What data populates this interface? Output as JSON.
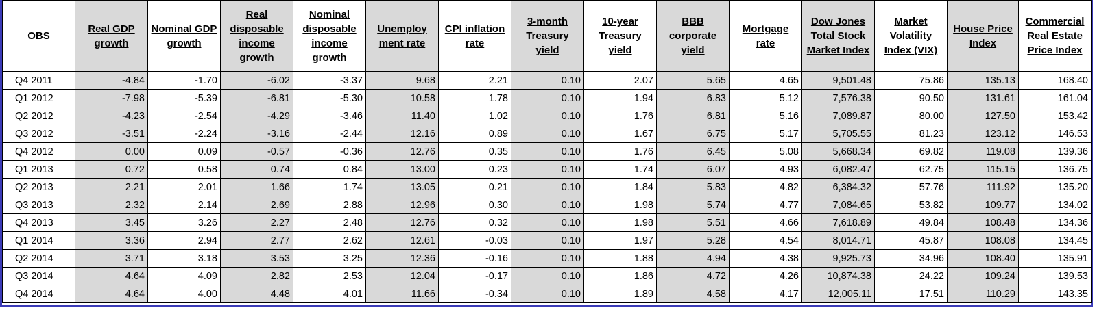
{
  "table": {
    "headers": [
      "OBS",
      "Real GDP growth",
      "Nominal GDP growth",
      "Real disposable income growth",
      "Nominal disposable income growth",
      "Unemploy ment rate",
      "CPI inflation rate",
      "3-month Treasury yield",
      "10-year Treasury yield",
      "BBB corporate yield",
      "Mortgage rate",
      "Dow Jones Total Stock Market Index",
      "Market Volatility Index (VIX)",
      "House Price Index",
      "Commercial Real Estate Price Index"
    ],
    "rows": [
      [
        "Q4 2011",
        "-4.84",
        "-1.70",
        "-6.02",
        "-3.37",
        "9.68",
        "2.21",
        "0.10",
        "2.07",
        "5.65",
        "4.65",
        "9,501.48",
        "75.86",
        "135.13",
        "168.40"
      ],
      [
        "Q1 2012",
        "-7.98",
        "-5.39",
        "-6.81",
        "-5.30",
        "10.58",
        "1.78",
        "0.10",
        "1.94",
        "6.83",
        "5.12",
        "7,576.38",
        "90.50",
        "131.61",
        "161.04"
      ],
      [
        "Q2 2012",
        "-4.23",
        "-2.54",
        "-4.29",
        "-3.46",
        "11.40",
        "1.02",
        "0.10",
        "1.76",
        "6.81",
        "5.16",
        "7,089.87",
        "80.00",
        "127.50",
        "153.42"
      ],
      [
        "Q3 2012",
        "-3.51",
        "-2.24",
        "-3.16",
        "-2.44",
        "12.16",
        "0.89",
        "0.10",
        "1.67",
        "6.75",
        "5.17",
        "5,705.55",
        "81.23",
        "123.12",
        "146.53"
      ],
      [
        "Q4 2012",
        "0.00",
        "0.09",
        "-0.57",
        "-0.36",
        "12.76",
        "0.35",
        "0.10",
        "1.76",
        "6.45",
        "5.08",
        "5,668.34",
        "69.82",
        "119.08",
        "139.36"
      ],
      [
        "Q1 2013",
        "0.72",
        "0.58",
        "0.74",
        "0.84",
        "13.00",
        "0.23",
        "0.10",
        "1.74",
        "6.07",
        "4.93",
        "6,082.47",
        "62.75",
        "115.15",
        "136.75"
      ],
      [
        "Q2 2013",
        "2.21",
        "2.01",
        "1.66",
        "1.74",
        "13.05",
        "0.21",
        "0.10",
        "1.84",
        "5.83",
        "4.82",
        "6,384.32",
        "57.76",
        "111.92",
        "135.20"
      ],
      [
        "Q3 2013",
        "2.32",
        "2.14",
        "2.69",
        "2.88",
        "12.96",
        "0.30",
        "0.10",
        "1.98",
        "5.74",
        "4.77",
        "7,084.65",
        "53.82",
        "109.77",
        "134.02"
      ],
      [
        "Q4 2013",
        "3.45",
        "3.26",
        "2.27",
        "2.48",
        "12.76",
        "0.32",
        "0.10",
        "1.98",
        "5.51",
        "4.66",
        "7,618.89",
        "49.84",
        "108.48",
        "134.36"
      ],
      [
        "Q1 2014",
        "3.36",
        "2.94",
        "2.77",
        "2.62",
        "12.61",
        "-0.03",
        "0.10",
        "1.97",
        "5.28",
        "4.54",
        "8,014.71",
        "45.87",
        "108.08",
        "134.45"
      ],
      [
        "Q2 2014",
        "3.71",
        "3.18",
        "3.53",
        "3.25",
        "12.36",
        "-0.16",
        "0.10",
        "1.88",
        "4.94",
        "4.38",
        "9,925.73",
        "34.96",
        "108.40",
        "135.91"
      ],
      [
        "Q3 2014",
        "4.64",
        "4.09",
        "2.82",
        "2.53",
        "12.04",
        "-0.17",
        "0.10",
        "1.86",
        "4.72",
        "4.26",
        "10,874.38",
        "24.22",
        "109.24",
        "139.53"
      ],
      [
        "Q4 2014",
        "4.64",
        "4.00",
        "4.48",
        "4.01",
        "11.66",
        "-0.34",
        "0.10",
        "1.89",
        "4.58",
        "4.17",
        "12,005.11",
        "17.51",
        "110.29",
        "143.35"
      ]
    ]
  }
}
